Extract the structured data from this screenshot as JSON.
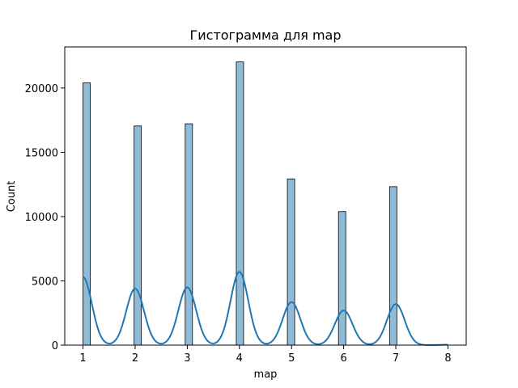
{
  "chart_data": {
    "type": "bar",
    "title": "Гистограмма для map",
    "xlabel": "map",
    "ylabel": "Count",
    "xlim": [
      0.65,
      8.35
    ],
    "ylim": [
      0,
      23200
    ],
    "x_ticks": [
      1,
      2,
      3,
      4,
      5,
      6,
      7,
      8
    ],
    "y_ticks": [
      0,
      5000,
      10000,
      15000,
      20000
    ],
    "grid": false,
    "bar_color": "#1f77b4",
    "kde_color": "#1f77b4",
    "bins": [
      {
        "x0": 1.0,
        "x1": 1.14,
        "value": 20400
      },
      {
        "x0": 1.98,
        "x1": 2.12,
        "value": 17050
      },
      {
        "x0": 2.96,
        "x1": 3.1,
        "value": 17220
      },
      {
        "x0": 3.94,
        "x1": 4.08,
        "value": 22030
      },
      {
        "x0": 4.92,
        "x1": 5.06,
        "value": 12930
      },
      {
        "x0": 5.9,
        "x1": 6.04,
        "value": 10390
      },
      {
        "x0": 6.88,
        "x1": 7.02,
        "value": 12330
      },
      {
        "x0": 7.86,
        "x1": 8.0,
        "value": 5
      }
    ],
    "kde": {
      "peaks": [
        {
          "x": 1,
          "y": 5300
        },
        {
          "x": 2,
          "y": 4400
        },
        {
          "x": 3,
          "y": 4500
        },
        {
          "x": 4,
          "y": 5700
        },
        {
          "x": 5,
          "y": 3350
        },
        {
          "x": 6,
          "y": 2700
        },
        {
          "x": 7,
          "y": 3200
        },
        {
          "x": 8,
          "y": 30
        }
      ],
      "x_range": [
        1,
        8
      ]
    }
  }
}
